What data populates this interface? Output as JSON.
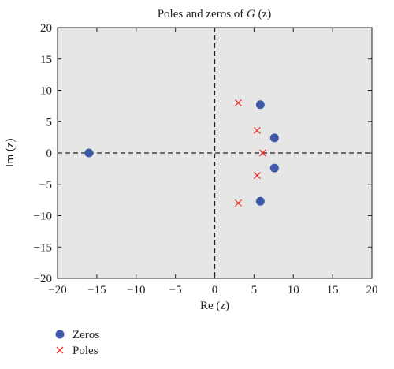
{
  "chart_data": {
    "type": "scatter",
    "title_prefix": "Poles and zeros of ",
    "title_var": "G",
    "title_suffix": " (z)",
    "xlabel": "Re (z)",
    "ylabel": "Im (z)",
    "xlim": [
      -20,
      20
    ],
    "ylim": [
      -20,
      20
    ],
    "xticks": [
      -20,
      -15,
      -10,
      -5,
      0,
      5,
      10,
      15,
      20
    ],
    "yticks": [
      -20,
      -15,
      -10,
      -5,
      0,
      5,
      10,
      15,
      20
    ],
    "tick_labels_x": [
      "−20",
      "−15",
      "−10",
      "−5",
      "0",
      "5",
      "10",
      "15",
      "20"
    ],
    "tick_labels_y": [
      "−20",
      "−15",
      "−10",
      "−5",
      "0",
      "5",
      "10",
      "15",
      "20"
    ],
    "grid": false,
    "background": "#e6e6e6",
    "legend_position": "bottom-left, below plot",
    "series": [
      {
        "name": "Zeros",
        "marker": "circle",
        "color": "#3f5aa8",
        "points": [
          {
            "x": -16.0,
            "y": 0.0
          },
          {
            "x": 5.8,
            "y": 7.7
          },
          {
            "x": 7.6,
            "y": 2.4
          },
          {
            "x": 7.6,
            "y": -2.4
          },
          {
            "x": 5.8,
            "y": -7.7
          }
        ]
      },
      {
        "name": "Poles",
        "marker": "x",
        "color": "#e8342b",
        "points": [
          {
            "x": 3.0,
            "y": 8.0
          },
          {
            "x": 5.4,
            "y": 3.6
          },
          {
            "x": 6.1,
            "y": 0.0
          },
          {
            "x": 5.4,
            "y": -3.6
          },
          {
            "x": 3.0,
            "y": -8.0
          }
        ]
      }
    ]
  }
}
